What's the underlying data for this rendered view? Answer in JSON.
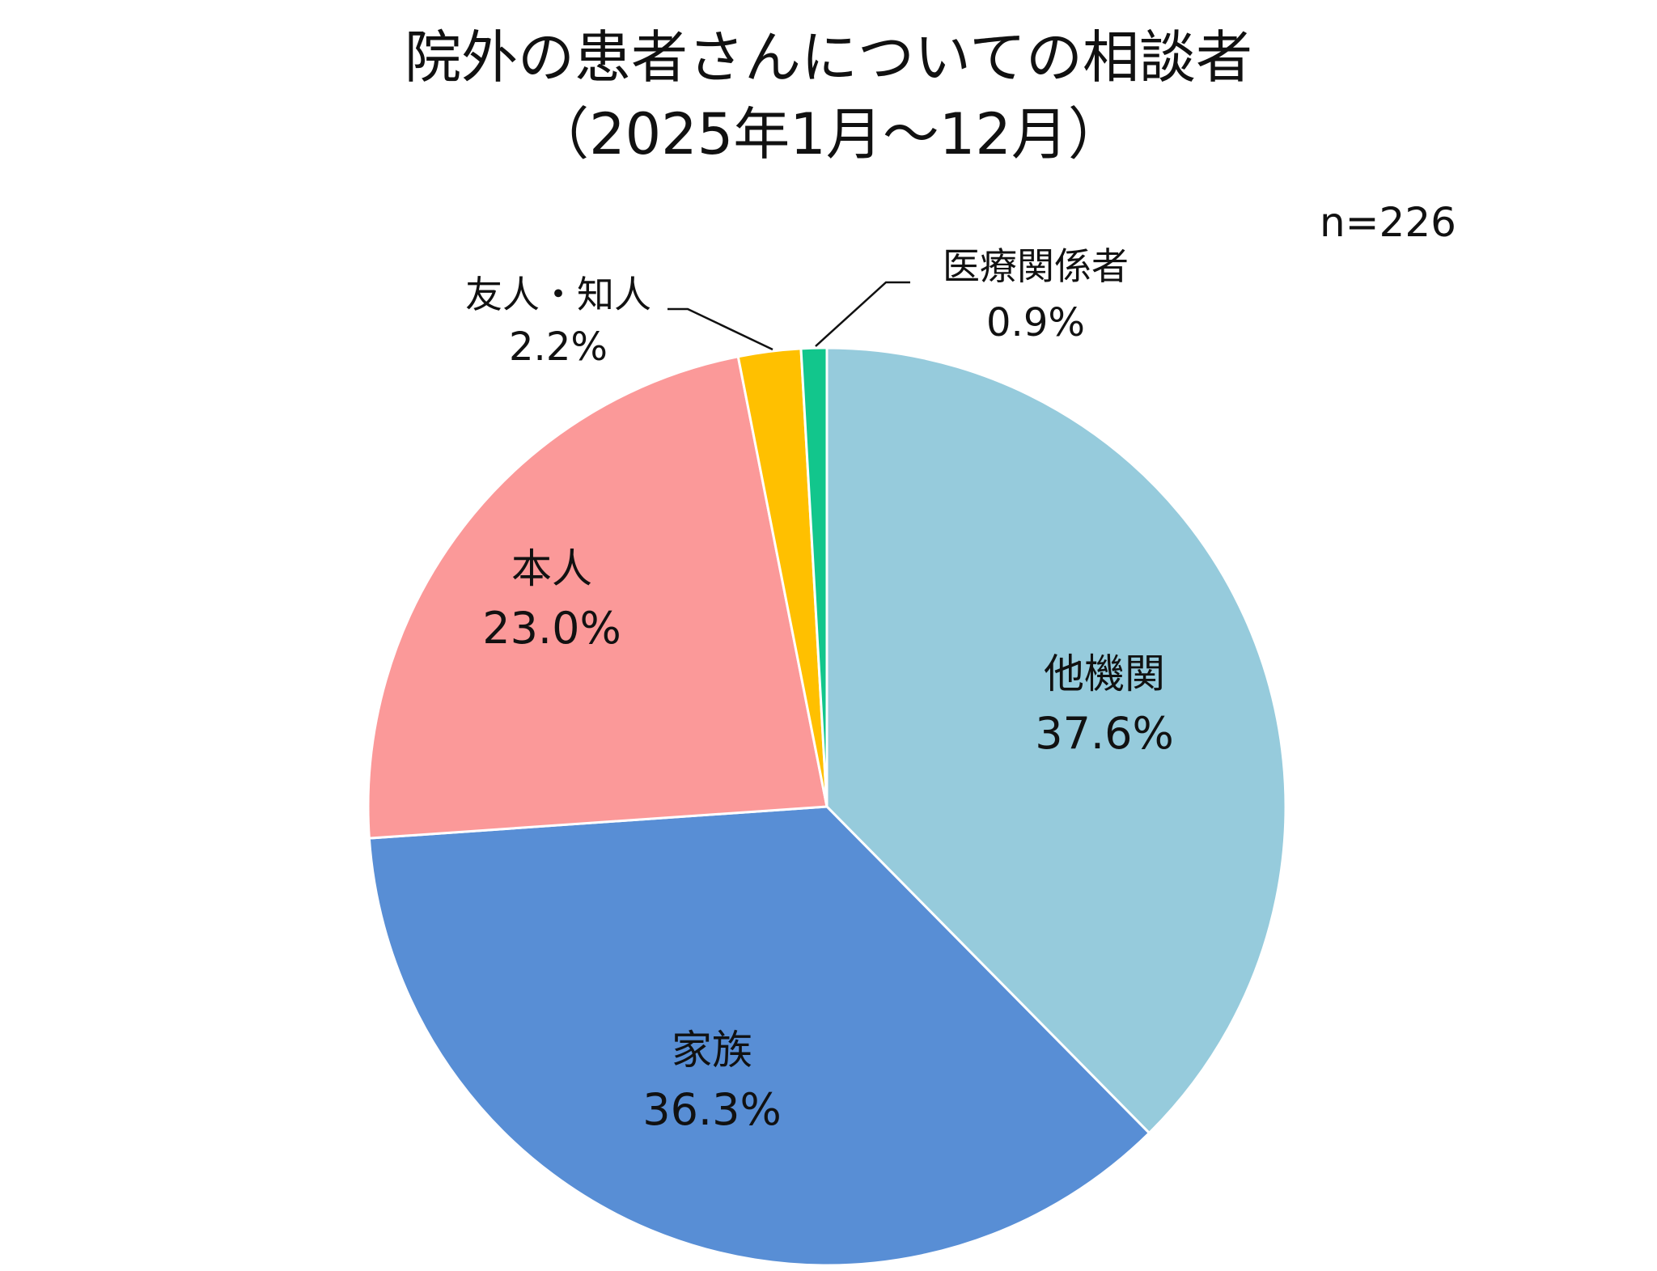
{
  "chart_data": {
    "type": "pie",
    "title": "院外の患者さんについての相談者",
    "subtitle": "（2025年1月～12月）",
    "note": "n=226",
    "categories": [
      "他機関",
      "家族",
      "本人",
      "友人・知人",
      "医療関係者"
    ],
    "values": [
      37.6,
      36.3,
      23.0,
      2.2,
      0.9
    ],
    "value_labels": [
      "37.6%",
      "36.3%",
      "23.0%",
      "2.2%",
      "0.9%"
    ],
    "colors": [
      "#96CBDC",
      "#588ED5",
      "#FB9999",
      "#FFC000",
      "#12C68C"
    ],
    "start_angle": "12 o'clock",
    "direction": "clockwise",
    "legend": "none",
    "grid": false
  }
}
